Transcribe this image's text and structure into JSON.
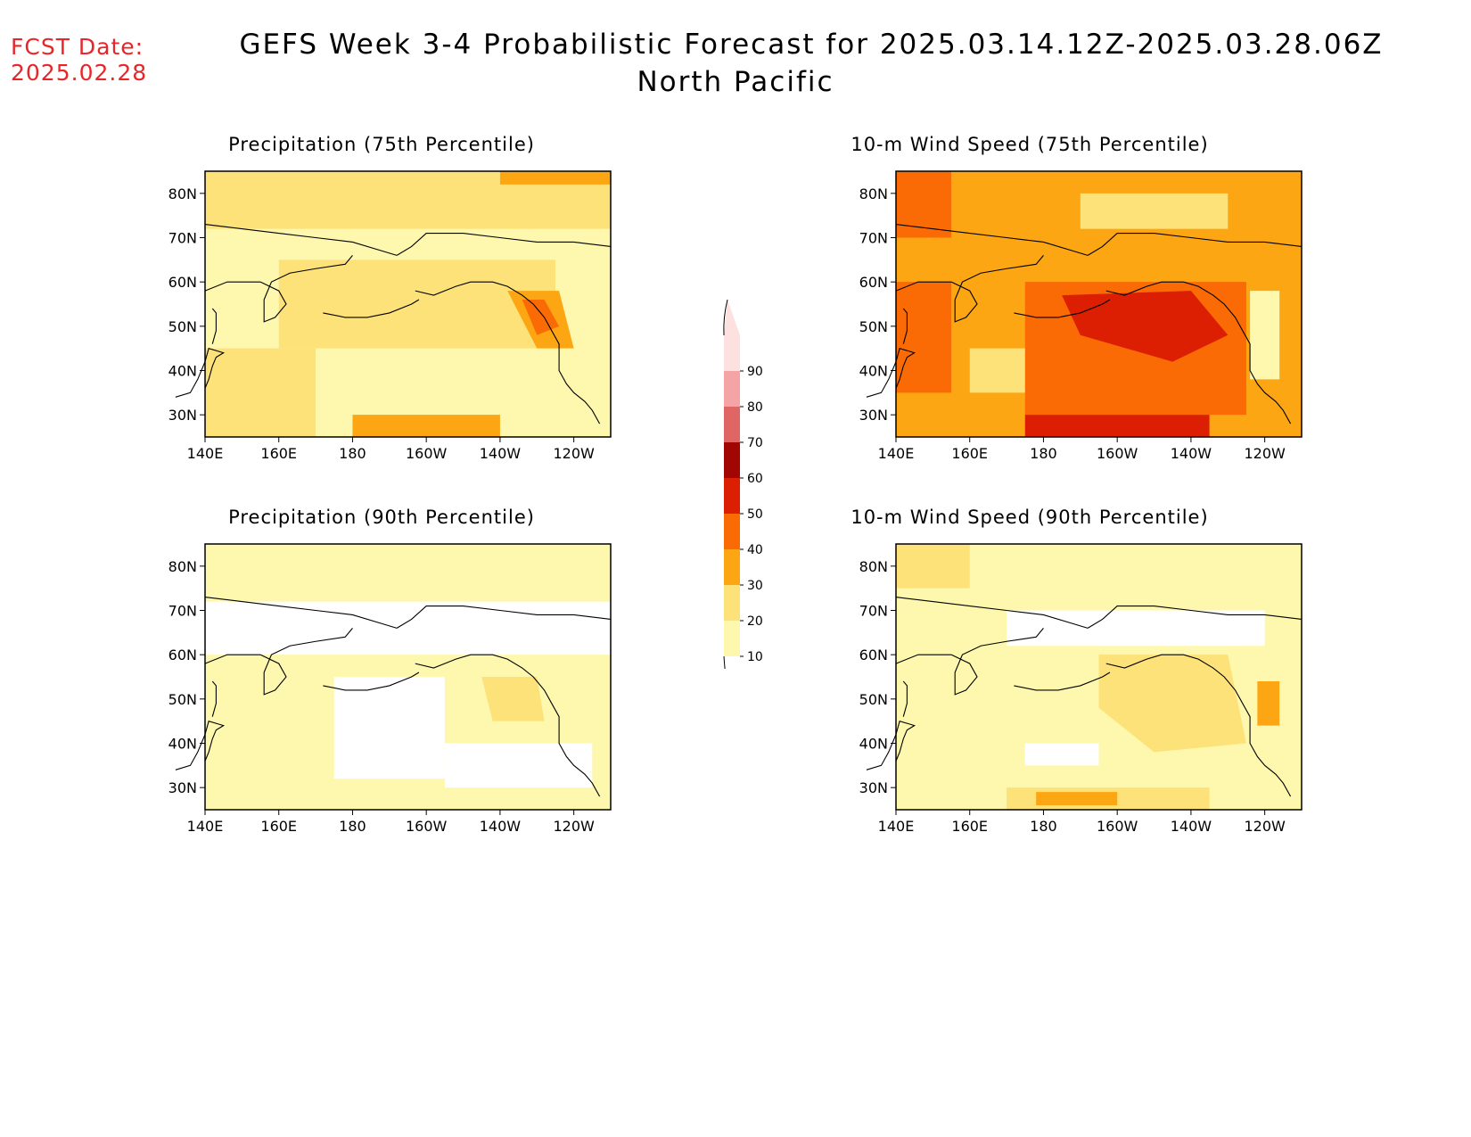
{
  "header": {
    "fcst_label": "FCST Date:",
    "fcst_date": "2025.02.28",
    "title": "GEFS Week 3-4 Probabilistic Forecast for 2025.03.14.12Z-2025.03.28.06Z",
    "subtitle": "North Pacific"
  },
  "panels": [
    {
      "title": "Precipitation (75th Percentile)"
    },
    {
      "title": "10-m Wind Speed (75th Percentile)"
    },
    {
      "title": "Precipitation (90th Percentile)"
    },
    {
      "title": "10-m Wind Speed (90th Percentile)"
    }
  ],
  "axes": {
    "lat_ticks": [
      "80N",
      "70N",
      "60N",
      "50N",
      "40N",
      "30N"
    ],
    "lon_ticks": [
      "140E",
      "160E",
      "180",
      "160W",
      "140W",
      "120W"
    ]
  },
  "colorbar": {
    "levels": [
      "10",
      "20",
      "30",
      "40",
      "50",
      "60",
      "70",
      "80",
      "90"
    ],
    "colors": [
      "#fef8ae",
      "#fde27a",
      "#fca613",
      "#fa6b05",
      "#dc1e02",
      "#a10602",
      "#e06666",
      "#f4a4a4",
      "#fde0e0"
    ]
  }
}
